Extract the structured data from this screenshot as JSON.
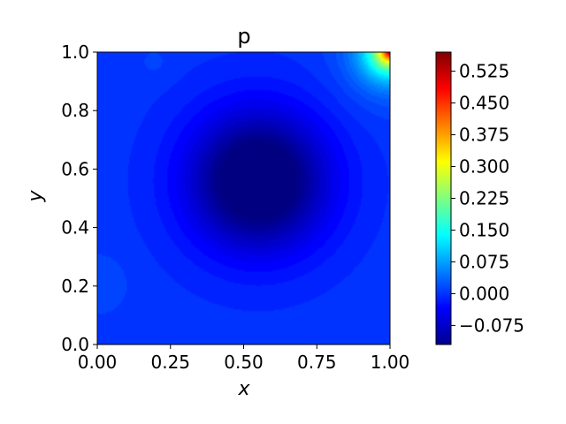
{
  "chart_data": {
    "type": "heatmap",
    "subtype": "filled-contour",
    "title": "p",
    "xlabel": "x",
    "ylabel": "y",
    "xlim": [
      0.0,
      1.0
    ],
    "ylim": [
      0.0,
      1.0
    ],
    "x_ticks": [
      "0.00",
      "0.25",
      "0.50",
      "0.75",
      "1.00"
    ],
    "y_ticks": [
      "0.0",
      "0.2",
      "0.4",
      "0.6",
      "0.8",
      "1.0"
    ],
    "colormap": "jet",
    "colorbar": {
      "range": [
        -0.12,
        0.57
      ],
      "ticks": [
        -0.075,
        0.0,
        0.075,
        0.15,
        0.225,
        0.3,
        0.375,
        0.45,
        0.525
      ],
      "tick_labels": [
        "−0.075",
        "0.000",
        "0.075",
        "0.150",
        "0.225",
        "0.300",
        "0.375",
        "0.450",
        "0.525"
      ]
    },
    "features": [
      {
        "description": "pressure minimum (low)",
        "x": 0.55,
        "y": 0.56,
        "value": -0.12
      },
      {
        "description": "pressure maximum (high)",
        "x": 1.0,
        "y": 1.0,
        "value": 0.57
      }
    ],
    "grid": false
  }
}
